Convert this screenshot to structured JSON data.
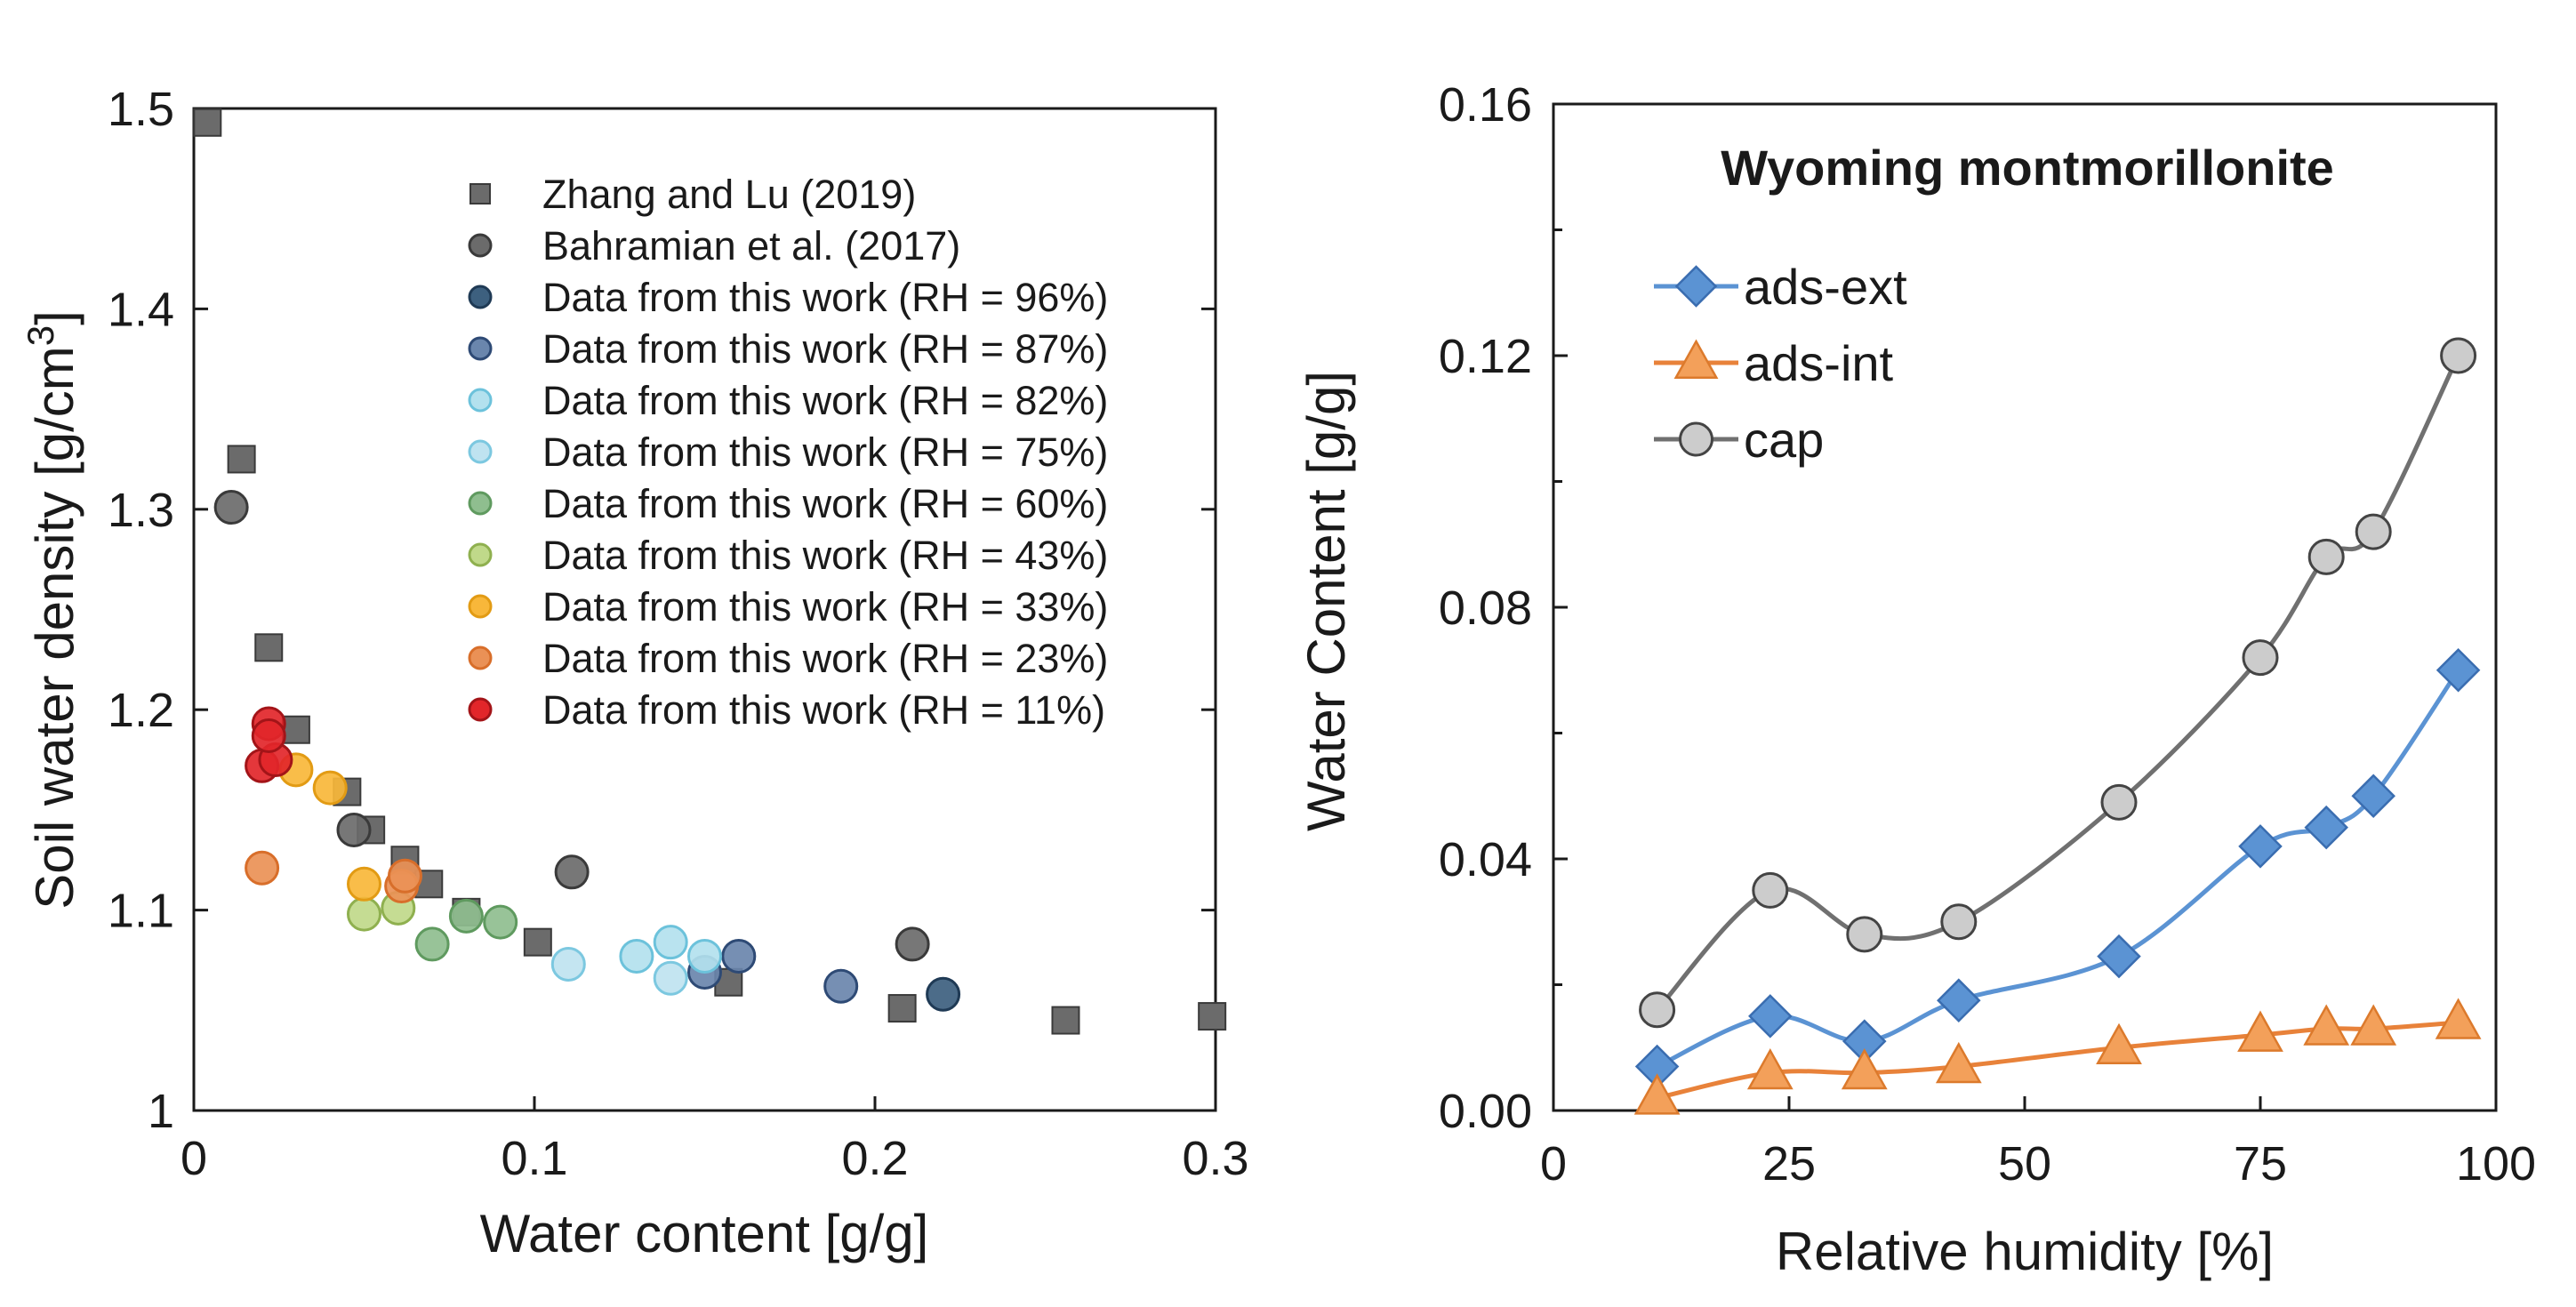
{
  "chart_data": [
    {
      "type": "scatter",
      "xlabel": "Water content [g/g]",
      "ylabel": "Soil water density [g/cm",
      "ylabel_sup": "3",
      "ylabel_end": "]",
      "xlim": [
        0,
        0.3
      ],
      "ylim": [
        1.0,
        1.5
      ],
      "x_ticks": [
        "0",
        "0.1",
        "0.2",
        "0.3"
      ],
      "y_ticks": [
        "1",
        "1.1",
        "1.2",
        "1.3",
        "1.4",
        "1.5"
      ],
      "legend_position": "top-right",
      "series": [
        {
          "name": "Zhang and Lu (2019)",
          "marker": "square",
          "color": "#6b6b6b",
          "edge": "#3a3a3a",
          "x": [
            0.004,
            0.014,
            0.022,
            0.03,
            0.045,
            0.052,
            0.062,
            0.069,
            0.08,
            0.101,
            0.157,
            0.208,
            0.256,
            0.299
          ],
          "y": [
            1.493,
            1.325,
            1.231,
            1.19,
            1.159,
            1.14,
            1.125,
            1.113,
            1.099,
            1.084,
            1.064,
            1.051,
            1.045,
            1.047
          ]
        },
        {
          "name": "Bahramian et al. (2017)",
          "marker": "circle",
          "color": "#6b6b6b",
          "edge": "#3a3a3a",
          "x": [
            0.011,
            0.047,
            0.111,
            0.211
          ],
          "y": [
            1.301,
            1.14,
            1.119,
            1.083
          ]
        },
        {
          "name": "Data from this work (RH = 96%)",
          "marker": "circle",
          "color": "#3d607f",
          "edge": "#1f3a55",
          "x": [
            0.22
          ],
          "y": [
            1.058
          ]
        },
        {
          "name": "Data from this work (RH = 87%)",
          "marker": "circle",
          "color": "#6a86ad",
          "edge": "#2e4a75",
          "x": [
            0.16,
            0.15,
            0.19
          ],
          "y": [
            1.077,
            1.069,
            1.062
          ]
        },
        {
          "name": "Data from this work (RH = 82%)",
          "marker": "circle",
          "color": "#b3e1ee",
          "edge": "#6cc2db",
          "x": [
            0.13,
            0.14,
            0.15
          ],
          "y": [
            1.077,
            1.084,
            1.077
          ]
        },
        {
          "name": "Data from this work (RH = 75%)",
          "marker": "circle",
          "color": "#bfe3f0",
          "edge": "#7cc8e0",
          "x": [
            0.11,
            0.14
          ],
          "y": [
            1.073,
            1.066
          ]
        },
        {
          "name": "Data from this work (RH = 60%)",
          "marker": "circle",
          "color": "#8fbe8f",
          "edge": "#5f9a5f",
          "x": [
            0.07,
            0.08,
            0.09
          ],
          "y": [
            1.083,
            1.097,
            1.094
          ]
        },
        {
          "name": "Data from this work (RH = 43%)",
          "marker": "circle",
          "color": "#c0d98a",
          "edge": "#8fb04f",
          "x": [
            0.05,
            0.06
          ],
          "y": [
            1.098,
            1.101
          ]
        },
        {
          "name": "Data from this work (RH = 33%)",
          "marker": "circle",
          "color": "#f8b73a",
          "edge": "#e29b14",
          "x": [
            0.03,
            0.04,
            0.05
          ],
          "y": [
            1.17,
            1.161,
            1.113
          ]
        },
        {
          "name": "Data from this work (RH = 23%)",
          "marker": "circle",
          "color": "#ea9156",
          "edge": "#d86e2a",
          "x": [
            0.02,
            0.061,
            0.062
          ],
          "y": [
            1.121,
            1.112,
            1.117
          ]
        },
        {
          "name": "Data from this work (RH = 11%)",
          "marker": "circle",
          "color": "#e2262a",
          "edge": "#a31418",
          "x": [
            0.022,
            0.02,
            0.024,
            0.022
          ],
          "y": [
            1.193,
            1.172,
            1.175,
            1.187
          ]
        }
      ]
    },
    {
      "type": "line",
      "title": "Wyoming montmorillonite",
      "xlabel": "Relative humidity [%]",
      "ylabel": "Water Content [g/g]",
      "xlim": [
        0,
        100
      ],
      "ylim": [
        0,
        0.16
      ],
      "x_ticks": [
        "0",
        "25",
        "50",
        "75",
        "100"
      ],
      "y_ticks": [
        "0.00",
        "0.04",
        "0.08",
        "0.12",
        "0.16"
      ],
      "legend_position": "top-left",
      "x": [
        11,
        23,
        33,
        43,
        60,
        75,
        82,
        87,
        96
      ],
      "series": [
        {
          "name": "ads-ext",
          "marker": "diamond",
          "color": "#5b93d3",
          "edge": "#3a6db0",
          "values": [
            0.007,
            0.015,
            0.011,
            0.0175,
            0.0245,
            0.042,
            0.045,
            0.05,
            0.07
          ]
        },
        {
          "name": "ads-int",
          "marker": "triangle",
          "color": "#f3a05a",
          "edge": "#dc7a2c",
          "values": [
            0.002,
            0.006,
            0.006,
            0.007,
            0.01,
            0.012,
            0.013,
            0.013,
            0.014
          ]
        },
        {
          "name": "cap",
          "marker": "circle",
          "color": "#cccccc",
          "edge": "#444444",
          "values": [
            0.016,
            0.035,
            0.028,
            0.03,
            0.049,
            0.072,
            0.088,
            0.092,
            0.12
          ]
        }
      ]
    }
  ]
}
